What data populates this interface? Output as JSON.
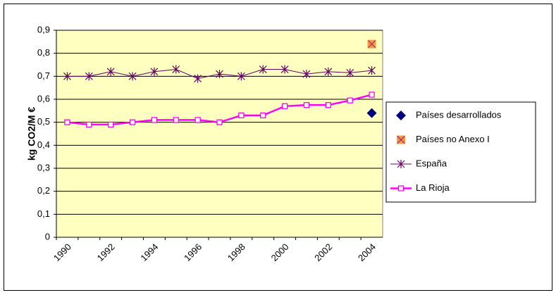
{
  "chart_data": {
    "type": "line",
    "ylabel": "kg CO2/M €",
    "categories": [
      "1990",
      null,
      "1992",
      null,
      "1994",
      null,
      "1996",
      null,
      "1998",
      null,
      "2000",
      null,
      "2002",
      null,
      "2004"
    ],
    "series": [
      {
        "name": "Países desarrollados",
        "color": "#000080",
        "marker": "diamond",
        "line_width": 0,
        "values": [
          null,
          null,
          null,
          null,
          null,
          null,
          null,
          null,
          null,
          null,
          null,
          null,
          null,
          null,
          0.54
        ]
      },
      {
        "name": "Países no Anexo I",
        "color": "#FF9933",
        "marker": "square-x",
        "line_width": 0,
        "values": [
          null,
          null,
          null,
          null,
          null,
          null,
          null,
          null,
          null,
          null,
          null,
          null,
          null,
          null,
          0.84
        ]
      },
      {
        "name": "España",
        "color": "#660066",
        "marker": "star",
        "line_width": 1,
        "values": [
          0.7,
          0.7,
          0.72,
          0.7,
          0.72,
          0.73,
          0.69,
          0.71,
          0.7,
          0.73,
          0.73,
          0.71,
          0.72,
          0.715,
          0.725
        ]
      },
      {
        "name": "La Rioja",
        "color": "#FF00FF",
        "marker": "open-square",
        "line_width": 2.5,
        "values": [
          0.5,
          0.49,
          0.49,
          0.5,
          0.51,
          0.51,
          0.51,
          0.5,
          0.53,
          0.53,
          0.57,
          0.575,
          0.575,
          0.595,
          0.62
        ]
      }
    ],
    "ylim": [
      0,
      0.9
    ],
    "yticks": [
      0,
      {
        "value": 0.1,
        "label": "0,1"
      },
      {
        "value": 0.2,
        "label": "0,2"
      },
      {
        "value": 0.3,
        "label": "0,3"
      },
      {
        "value": 0.4,
        "label": "0,4"
      },
      {
        "value": 0.5,
        "label": "0,5"
      },
      {
        "value": 0.6,
        "label": "0,6"
      },
      {
        "value": 0.7,
        "label": "0,7"
      },
      {
        "value": 0.8,
        "label": "0,8"
      },
      {
        "value": 0.9,
        "label": "0,9"
      }
    ],
    "grid": true,
    "plot_background": "#FFFFC0",
    "legend": "right"
  }
}
